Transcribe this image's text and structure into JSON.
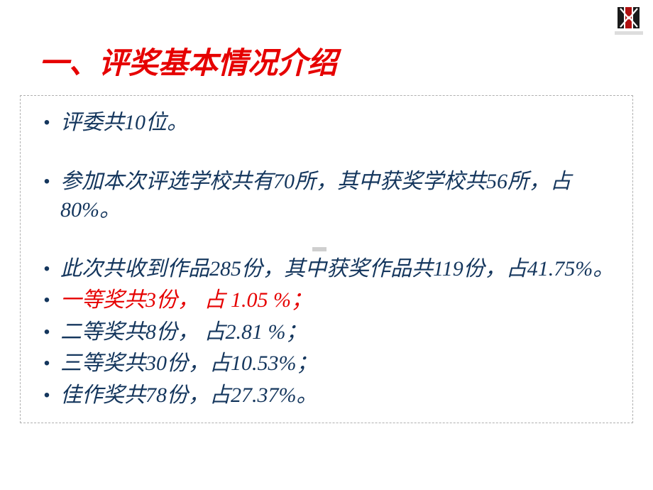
{
  "colors": {
    "title": "#e60000",
    "body": "#14365d",
    "red_text": "#e60000",
    "bullet": "#14365d",
    "border": "#b0b0b0"
  },
  "typography": {
    "title_size": 42,
    "body_size": 30,
    "bullet_size": 24
  },
  "title": "一、评奖基本情况介绍",
  "bullets": [
    {
      "text": "评委共10位。",
      "color": "body",
      "gap_after": "large"
    },
    {
      "text": "参加本次评选学校共有70所，其中获奖学校共56所，占80%。",
      "color": "body",
      "gap_after": "large"
    },
    {
      "text": "此次共收到作品285份，其中获奖作品共119份，占41.75%。",
      "color": "body",
      "gap_after": "small"
    },
    {
      "text": " 一等奖共3份， 占 1.05 %；",
      "color": "red_text",
      "gap_after": "small"
    },
    {
      "text": "二等奖共8份，  占2.81 %；",
      "color": "body",
      "gap_after": "small"
    },
    {
      "text": "三等奖共30份，占10.53%；",
      "color": "body",
      "gap_after": "small"
    },
    {
      "text": "佳作奖共78份，占27.37%。",
      "color": "body",
      "gap_after": "none"
    }
  ],
  "logo": {
    "bg": "#ffffff",
    "bands": [
      "#222222",
      "#c00000",
      "#222222"
    ],
    "caption_color": "#888888"
  }
}
